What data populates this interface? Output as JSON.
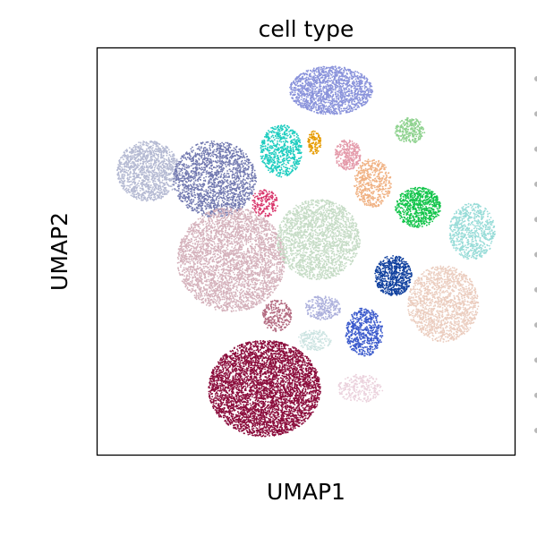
{
  "chart_data": {
    "type": "scatter",
    "title": "cell type",
    "xlabel": "UMAP1",
    "ylabel": "UMAP2",
    "xlim": [
      0,
      100
    ],
    "ylim": [
      0,
      100
    ],
    "grid": false,
    "ticks": false,
    "legend": "right (cut off)",
    "series": [
      {
        "color": "#8a93db",
        "center": [
          56,
          90
        ],
        "spread": [
          10,
          6
        ],
        "n": 1600
      },
      {
        "color": "#b5bad3",
        "center": [
          12,
          70
        ],
        "spread": [
          7.5,
          7.5
        ],
        "n": 1300
      },
      {
        "color": "#7279b0",
        "center": [
          28,
          68
        ],
        "spread": [
          10,
          9.5
        ],
        "n": 1700
      },
      {
        "color": "#1fcdc0",
        "center": [
          44,
          75
        ],
        "spread": [
          5,
          6.5
        ],
        "n": 650
      },
      {
        "color": "#e69b00",
        "center": [
          52,
          77
        ],
        "spread": [
          1.6,
          3
        ],
        "n": 120
      },
      {
        "color": "#e49aaa",
        "center": [
          60,
          74
        ],
        "spread": [
          3.2,
          3.8
        ],
        "n": 300
      },
      {
        "color": "#8fd28f",
        "center": [
          75,
          80
        ],
        "spread": [
          3.6,
          3.2
        ],
        "n": 280
      },
      {
        "color": "#f0b182",
        "center": [
          66,
          67
        ],
        "spread": [
          4.5,
          6
        ],
        "n": 500
      },
      {
        "color": "#d8346a",
        "center": [
          40,
          62
        ],
        "spread": [
          3.2,
          3.4
        ],
        "n": 180
      },
      {
        "color": "#12c44a",
        "center": [
          77,
          61
        ],
        "spread": [
          5.5,
          5
        ],
        "n": 700
      },
      {
        "color": "#98dcd8",
        "center": [
          90,
          55
        ],
        "spread": [
          5.5,
          7
        ],
        "n": 700
      },
      {
        "color": "#d5b2bc",
        "center": [
          32,
          48
        ],
        "spread": [
          13,
          13
        ],
        "n": 3400
      },
      {
        "color": "#c6dcc6",
        "center": [
          53,
          53
        ],
        "spread": [
          10,
          10
        ],
        "n": 2000
      },
      {
        "color": "#10409e",
        "center": [
          71,
          44
        ],
        "spread": [
          4.5,
          5
        ],
        "n": 650
      },
      {
        "color": "#ebcdbf",
        "center": [
          83,
          37
        ],
        "spread": [
          8.5,
          9.5
        ],
        "n": 1500
      },
      {
        "color": "#b36a80",
        "center": [
          43,
          34
        ],
        "spread": [
          3.5,
          4
        ],
        "n": 260
      },
      {
        "color": "#acb0dc",
        "center": [
          54,
          36
        ],
        "spread": [
          4.4,
          3
        ],
        "n": 260
      },
      {
        "color": "#3b5acc",
        "center": [
          64,
          30
        ],
        "spread": [
          4.5,
          6
        ],
        "n": 600
      },
      {
        "color": "#cde4e2",
        "center": [
          52,
          28
        ],
        "spread": [
          4,
          2.6
        ],
        "n": 200
      },
      {
        "color": "#8b0d3c",
        "center": [
          40,
          16
        ],
        "spread": [
          13.5,
          12
        ],
        "n": 4500
      },
      {
        "color": "#ebd2dd",
        "center": [
          63,
          16
        ],
        "spread": [
          5.5,
          3.5
        ],
        "n": 280
      }
    ]
  }
}
